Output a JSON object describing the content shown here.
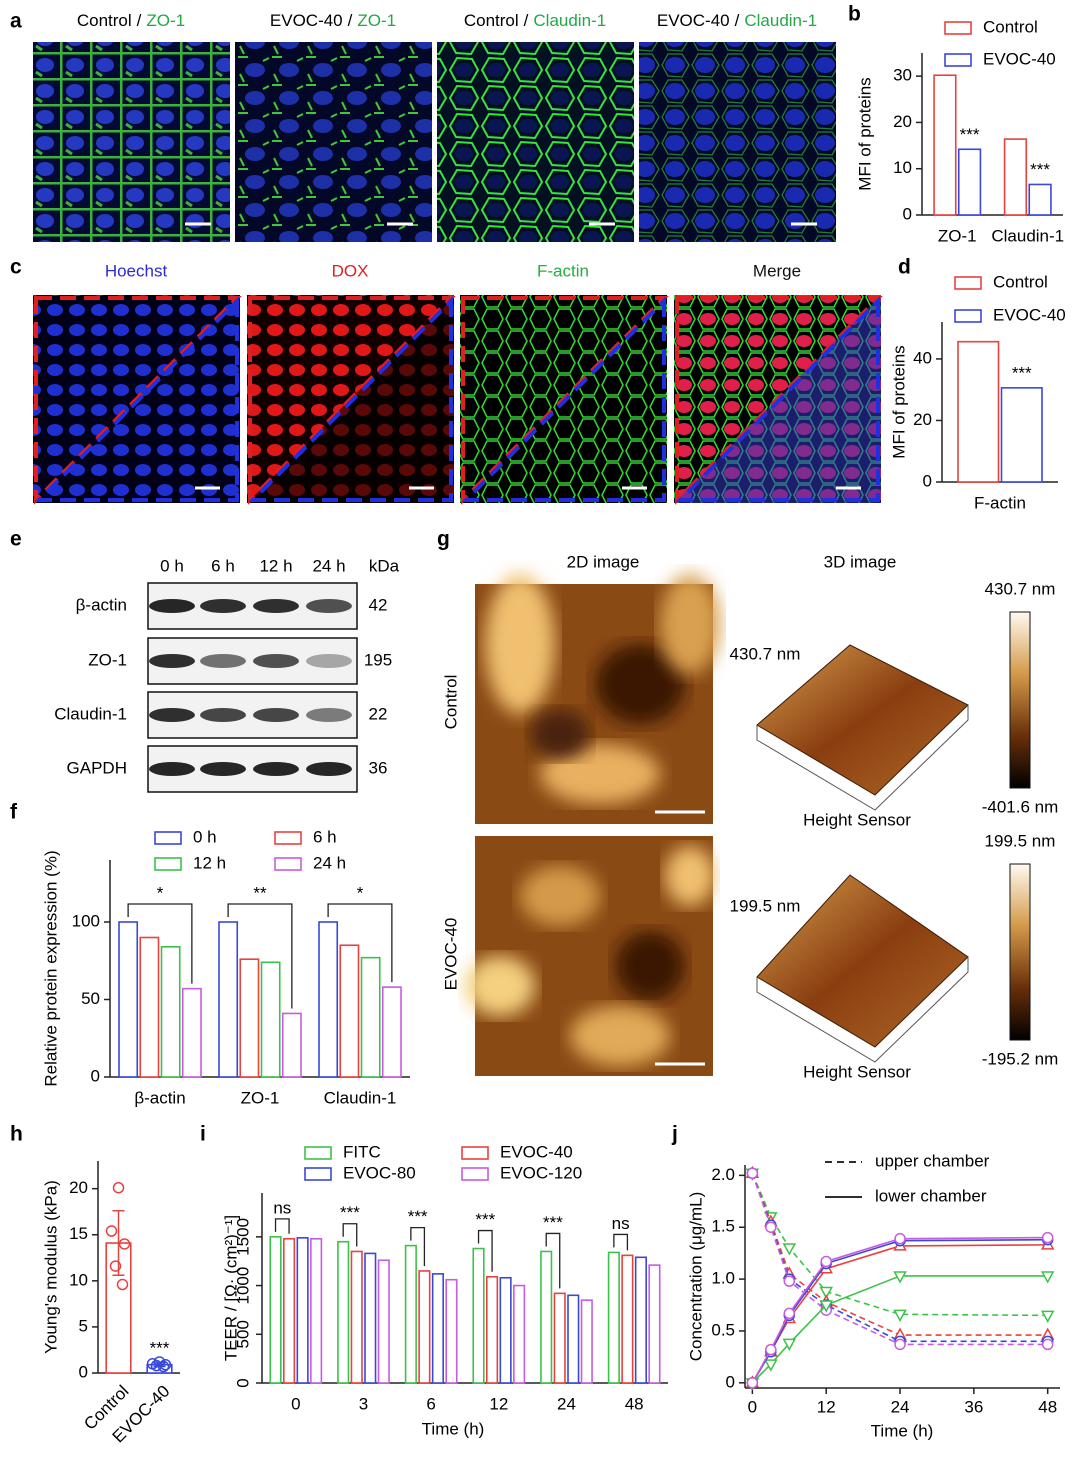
{
  "panel_a": {
    "panel": "a",
    "images": [
      {
        "sample": "Control",
        "separator": "/",
        "stain": "ZO-1",
        "stain_color": "#22a845"
      },
      {
        "sample": "EVOC-40",
        "separator": "/",
        "stain": "ZO-1",
        "stain_color": "#22a845"
      },
      {
        "sample": "Control",
        "separator": "/",
        "stain": "Claudin-1",
        "stain_color": "#22a845"
      },
      {
        "sample": "EVOC-40",
        "separator": "/",
        "stain": "Claudin-1",
        "stain_color": "#22a845"
      }
    ]
  },
  "panel_c": {
    "panel": "c",
    "images": [
      {
        "label": "Hoechst",
        "color": "#2b2bd8"
      },
      {
        "label": "DOX",
        "color": "#e02020"
      },
      {
        "label": "F-actin",
        "color": "#22b03a"
      },
      {
        "label": "Merge",
        "color": "#111111"
      }
    ]
  },
  "panel_e": {
    "panel": "e",
    "lanes": [
      "0 h",
      "6 h",
      "12 h",
      "24 h"
    ],
    "unit": "kDa",
    "rows": [
      {
        "label": "β-actin",
        "kda": 42
      },
      {
        "label": "ZO-1",
        "kda": 195
      },
      {
        "label": "Claudin-1",
        "kda": 22
      },
      {
        "label": "GAPDH",
        "kda": 36
      }
    ]
  },
  "panel_g": {
    "panel": "g",
    "columns": [
      "2D image",
      "3D image"
    ],
    "rows": [
      {
        "label": "Control",
        "height": "430.7 nm",
        "sensor": "Height Sensor",
        "scale_max": "430.7 nm",
        "scale_min": "-401.6 nm"
      },
      {
        "label": "EVOC-40",
        "height": "199.5 nm",
        "sensor": "Height Sensor",
        "scale_max": "199.5 nm",
        "scale_min": "-195.2 nm"
      }
    ]
  },
  "chart_data": [
    {
      "panel": "b",
      "type": "bar",
      "ylabel": "MFI of proteins",
      "categories": [
        "ZO-1",
        "Claudin-1"
      ],
      "series": [
        {
          "name": "Control",
          "color": "#e8423f",
          "values": [
            30.2,
            16.4
          ]
        },
        {
          "name": "EVOC-40",
          "color": "#3a48d8",
          "values": [
            14.2,
            6.6
          ]
        }
      ],
      "significance": [
        "***",
        "***"
      ],
      "ylim": [
        0,
        35
      ],
      "yticks": [
        0,
        10,
        20,
        30
      ]
    },
    {
      "panel": "d",
      "type": "bar",
      "ylabel": "MFI of proteins",
      "categories": [
        "F-actin"
      ],
      "series": [
        {
          "name": "Control",
          "color": "#e8423f",
          "values": [
            45.6
          ]
        },
        {
          "name": "EVOC-40",
          "color": "#3a48d8",
          "values": [
            30.6
          ]
        }
      ],
      "significance": [
        "***"
      ],
      "ylim": [
        0,
        52
      ],
      "yticks": [
        0,
        20,
        40
      ]
    },
    {
      "panel": "f",
      "type": "bar",
      "ylabel": "Relative protein expression (%)",
      "categories": [
        "β-actin",
        "ZO-1",
        "Claudin-1"
      ],
      "series": [
        {
          "name": "0 h",
          "color": "#3a48d8",
          "values": [
            100,
            100,
            100
          ]
        },
        {
          "name": "6 h",
          "color": "#e8423f",
          "values": [
            90,
            76,
            85
          ]
        },
        {
          "name": "12 h",
          "color": "#3cc24a",
          "values": [
            84,
            74,
            77
          ]
        },
        {
          "name": "24 h",
          "color": "#c75ce0",
          "values": [
            57,
            41,
            58
          ]
        }
      ],
      "significance": [
        "*",
        "**",
        "*"
      ],
      "ylim": [
        0,
        140
      ],
      "yticks": [
        0,
        50,
        100
      ]
    },
    {
      "panel": "h",
      "type": "bar",
      "ylabel": "Young's modulus (kPa)",
      "categories": [
        "Control",
        "EVOC-40"
      ],
      "values": [
        14.1,
        0.9
      ],
      "errors": [
        3.5,
        0.2
      ],
      "colors": [
        "#e8423f",
        "#3a48d8"
      ],
      "points": [
        [
          20.1,
          15.4,
          14.0,
          11.6,
          9.6
        ],
        [
          1.2,
          1.0,
          0.9,
          0.8,
          0.7
        ]
      ],
      "significance": [
        null,
        "***"
      ],
      "ylim": [
        0,
        23
      ],
      "yticks": [
        0,
        5,
        10,
        15,
        20
      ]
    },
    {
      "panel": "i",
      "type": "bar",
      "ylabel": "TEER / [Ω· (cm²)⁻¹]",
      "xlabel": "Time (h)",
      "categories": [
        0,
        3,
        6,
        12,
        24,
        48
      ],
      "series": [
        {
          "name": "FITC",
          "color": "#3cc24a",
          "values": [
            1500,
            1450,
            1410,
            1380,
            1350,
            1340
          ]
        },
        {
          "name": "EVOC-40",
          "color": "#e8423f",
          "values": [
            1480,
            1350,
            1150,
            1090,
            920,
            1310
          ]
        },
        {
          "name": "EVOC-80",
          "color": "#3a48d8",
          "values": [
            1490,
            1330,
            1120,
            1080,
            900,
            1290
          ]
        },
        {
          "name": "EVOC-120",
          "color": "#c75ce0",
          "values": [
            1480,
            1260,
            1060,
            1000,
            850,
            1210
          ]
        }
      ],
      "significance": [
        "ns",
        "***",
        "***",
        "***",
        "***",
        "ns"
      ],
      "ylim": [
        0,
        1950
      ],
      "yticks": [
        0,
        500,
        1000,
        1500
      ]
    },
    {
      "panel": "j",
      "type": "line",
      "ylabel": "Concentration (μg/mL)",
      "xlabel": "Time (h)",
      "x": [
        0,
        3,
        6,
        12,
        24,
        48
      ],
      "series": [
        {
          "color": "#3cc24a",
          "style": "dashed",
          "marker": "triangle-down",
          "values": [
            2.02,
            1.6,
            1.3,
            0.88,
            0.66,
            0.65
          ]
        },
        {
          "color": "#e8423f",
          "style": "dashed",
          "marker": "triangle-up",
          "values": [
            2.02,
            1.55,
            1.05,
            0.78,
            0.46,
            0.46
          ]
        },
        {
          "color": "#3a48d8",
          "style": "dashed",
          "marker": "circle",
          "values": [
            2.02,
            1.52,
            1.0,
            0.75,
            0.4,
            0.4
          ]
        },
        {
          "color": "#c75ce0",
          "style": "dashed",
          "marker": "circle",
          "values": [
            2.02,
            1.5,
            0.98,
            0.7,
            0.37,
            0.37
          ]
        },
        {
          "color": "#3cc24a",
          "style": "solid",
          "marker": "triangle-down",
          "values": [
            0,
            0.18,
            0.38,
            0.75,
            1.03,
            1.03
          ]
        },
        {
          "color": "#e8423f",
          "style": "solid",
          "marker": "triangle-up",
          "values": [
            0,
            0.3,
            0.62,
            1.1,
            1.32,
            1.33
          ]
        },
        {
          "color": "#3a48d8",
          "style": "solid",
          "marker": "circle",
          "values": [
            0,
            0.3,
            0.65,
            1.15,
            1.37,
            1.38
          ]
        },
        {
          "color": "#c75ce0",
          "style": "solid",
          "marker": "circle",
          "values": [
            0,
            0.32,
            0.67,
            1.17,
            1.39,
            1.4
          ]
        }
      ],
      "legend": [
        {
          "label": "upper chamber",
          "style": "dashed"
        },
        {
          "label": "lower chamber",
          "style": "solid"
        }
      ],
      "xlim": [
        -1.2,
        50
      ],
      "xticks": [
        0,
        12,
        24,
        36,
        48
      ],
      "ylim": [
        -0.05,
        2.1
      ],
      "yticks": [
        0,
        0.5,
        {
          "value": 1,
          "label": "1.0"
        },
        1.5,
        {
          "value": 2,
          "label": "2.0"
        }
      ]
    }
  ]
}
